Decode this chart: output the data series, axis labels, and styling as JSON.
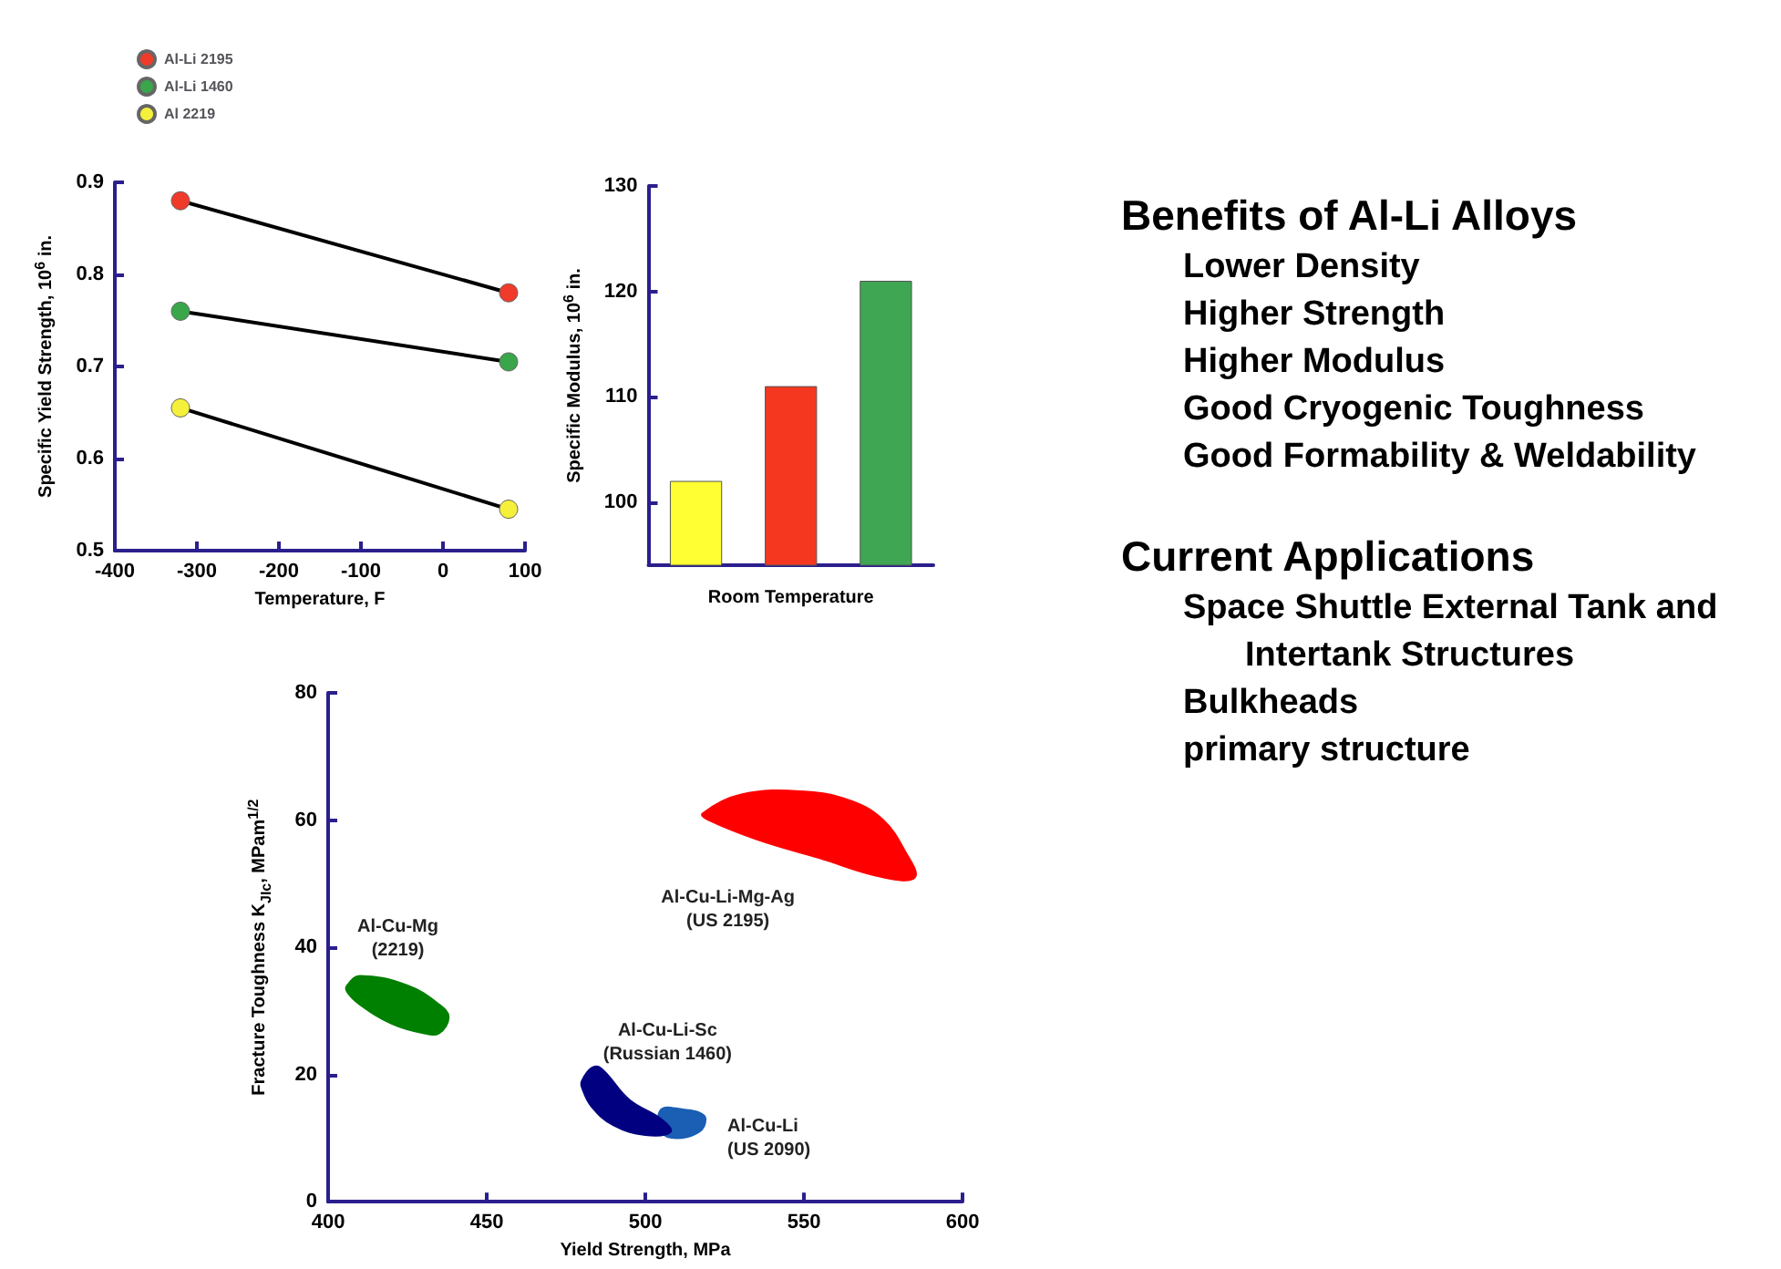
{
  "chart_data": [
    {
      "type": "line",
      "xlabel": "Temperature, F",
      "ylabel": "Specific Yield Strength, 10$^{6}$ in.",
      "xlim": [
        -400,
        100
      ],
      "xticks": [
        -400,
        -300,
        -200,
        -100,
        0,
        100
      ],
      "ylim": [
        0.5,
        0.9
      ],
      "yticks": [
        0.5,
        0.6,
        0.7,
        0.8,
        0.9
      ],
      "grid": false,
      "legend": "top left",
      "marker": "circle",
      "line_style": "solid",
      "series": [
        {
          "name": "Al-Li 2195",
          "color": "#f03a2a",
          "x": [
            -320,
            80
          ],
          "values": [
            0.88,
            0.78
          ]
        },
        {
          "name": "Al-Li 1460",
          "color": "#3aa64a",
          "x": [
            -320,
            80
          ],
          "values": [
            0.76,
            0.705
          ]
        },
        {
          "name": "Al 2219",
          "color": "#f5f03a",
          "x": [
            -320,
            80
          ],
          "values": [
            0.655,
            0.545
          ]
        }
      ]
    },
    {
      "type": "bar",
      "xlabel": "Room Temperature",
      "ylabel": "Specific Modulus, 10$^{6}$ in.",
      "categories": [
        null,
        null,
        null
      ],
      "values": [
        102,
        111,
        121
      ],
      "colors": [
        "#ffff33",
        "#f5371f",
        "#3fa654"
      ],
      "ylim": [
        94,
        130
      ],
      "yticks": [
        100,
        110,
        120,
        130
      ],
      "grid": false
    },
    {
      "type": "area",
      "xlabel": "Yield Strength, MPa",
      "ylabel": "Fracture Toughness K$_{JIc}$, MPam$^{1/2}$",
      "xlim": [
        400,
        600
      ],
      "xticks": [
        400,
        450,
        500,
        550,
        600
      ],
      "ylim": [
        0,
        80
      ],
      "yticks": [
        0,
        20,
        40,
        60,
        80
      ],
      "grid": false,
      "series": [
        {
          "name": "Al-Cu-Mg\n(2219)",
          "color": "#008000",
          "x": [
            406,
            410,
            425,
            435,
            438,
            435,
            430,
            420,
            410,
            406
          ],
          "values": [
            34,
            35.5,
            34,
            31,
            29,
            26.5,
            26.5,
            28,
            31,
            33
          ]
        },
        {
          "name": "Al-Cu-Li-Mg-Ag\n(US 2195)",
          "color": "#ff0000",
          "x": [
            518,
            530,
            550,
            565,
            575,
            582,
            585,
            575,
            555,
            535,
            520
          ],
          "values": [
            61,
            64,
            64.5,
            63,
            60,
            55,
            51,
            51,
            54,
            57,
            60
          ]
        },
        {
          "name": "Al-Cu-Li\n(US 2090)",
          "color": "#1a5fb4",
          "x": [
            505,
            512,
            517,
            519,
            517,
            510,
            505
          ],
          "values": [
            14.5,
            14.5,
            14,
            13,
            11,
            10,
            11
          ]
        },
        {
          "name": "Al-Cu-Li-Sc\n(Russian 1460)",
          "color": "#000080",
          "x": [
            480,
            483,
            486,
            495,
            505,
            508,
            500,
            490,
            483,
            480
          ],
          "values": [
            19,
            21,
            21,
            16,
            13,
            11,
            10.5,
            12,
            15,
            18
          ]
        }
      ]
    },
    {
      "type": "other",
      "title": "Benefits of Al-Li Alloys",
      "annotations": [
        "Lower Density",
        "Higher Strength",
        "Higher Modulus",
        "Good Cryogenic Toughness",
        "Good Formability & Weldability"
      ]
    },
    {
      "type": "other",
      "title": "Current Applications",
      "annotations": [
        "Space Shuttle External Tank and Intertank Structures",
        "Bulkheads",
        "primary structure"
      ]
    }
  ]
}
